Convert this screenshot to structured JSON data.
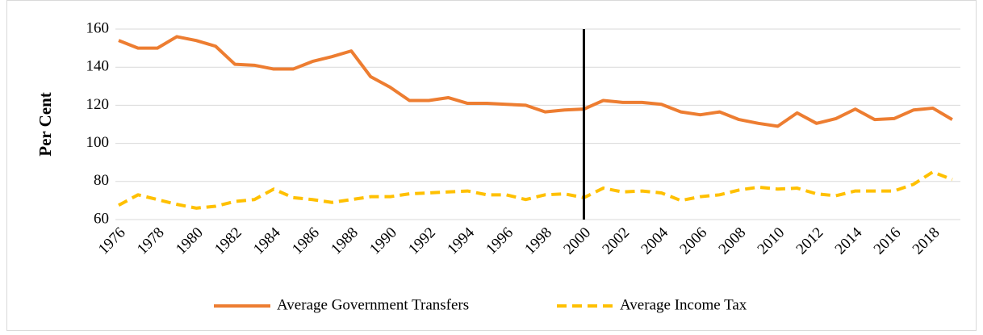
{
  "chart_data": {
    "type": "line",
    "y_label": "Per Cent",
    "categories": [
      "1976",
      null,
      "1978",
      null,
      "1980",
      null,
      "1982",
      null,
      "1984",
      null,
      "1986",
      null,
      "1988",
      null,
      "1990",
      null,
      "1992",
      null,
      "1994",
      null,
      "1996",
      null,
      "1998",
      null,
      "2000",
      null,
      "2002",
      null,
      "2004",
      null,
      "2006",
      null,
      "2008",
      null,
      "2010",
      null,
      "2012",
      null,
      "2014",
      null,
      "2016",
      null,
      "2018",
      null
    ],
    "series": [
      {
        "name": "Average Government Transfers",
        "color": "#ed7d31",
        "dash": false,
        "values": [
          154,
          150,
          150,
          156,
          154,
          151,
          141.5,
          141,
          139,
          139,
          143,
          145.5,
          148.5,
          135,
          129.5,
          122.5,
          122.5,
          124,
          121,
          121,
          120.5,
          120,
          116.5,
          117.5,
          118,
          122.5,
          121.5,
          121.5,
          120.5,
          116.5,
          115,
          116.5,
          112.5,
          110.5,
          109,
          116,
          110.5,
          113,
          118,
          112.5,
          113,
          117.5,
          118.5,
          112.5
        ]
      },
      {
        "name": "Average Income Tax",
        "color": "#ffc000",
        "dash": true,
        "values": [
          67.5,
          73,
          70.5,
          68,
          66,
          67,
          69.5,
          70.5,
          76,
          71.5,
          70.5,
          69,
          70.5,
          72,
          72,
          73.5,
          74,
          74.5,
          75,
          73,
          73,
          70.5,
          73,
          73.5,
          71.5,
          76.5,
          74.5,
          75,
          74,
          70,
          72,
          73,
          75.5,
          77,
          76,
          76.5,
          73.5,
          72.5,
          75,
          75,
          75,
          78.5,
          85,
          81
        ]
      }
    ],
    "reference_line": {
      "x": "2000",
      "color": "#000000"
    },
    "ylim": [
      60,
      160
    ],
    "yticks": [
      60,
      80,
      100,
      120,
      140,
      160
    ],
    "grid": true,
    "legend": "bottom"
  }
}
